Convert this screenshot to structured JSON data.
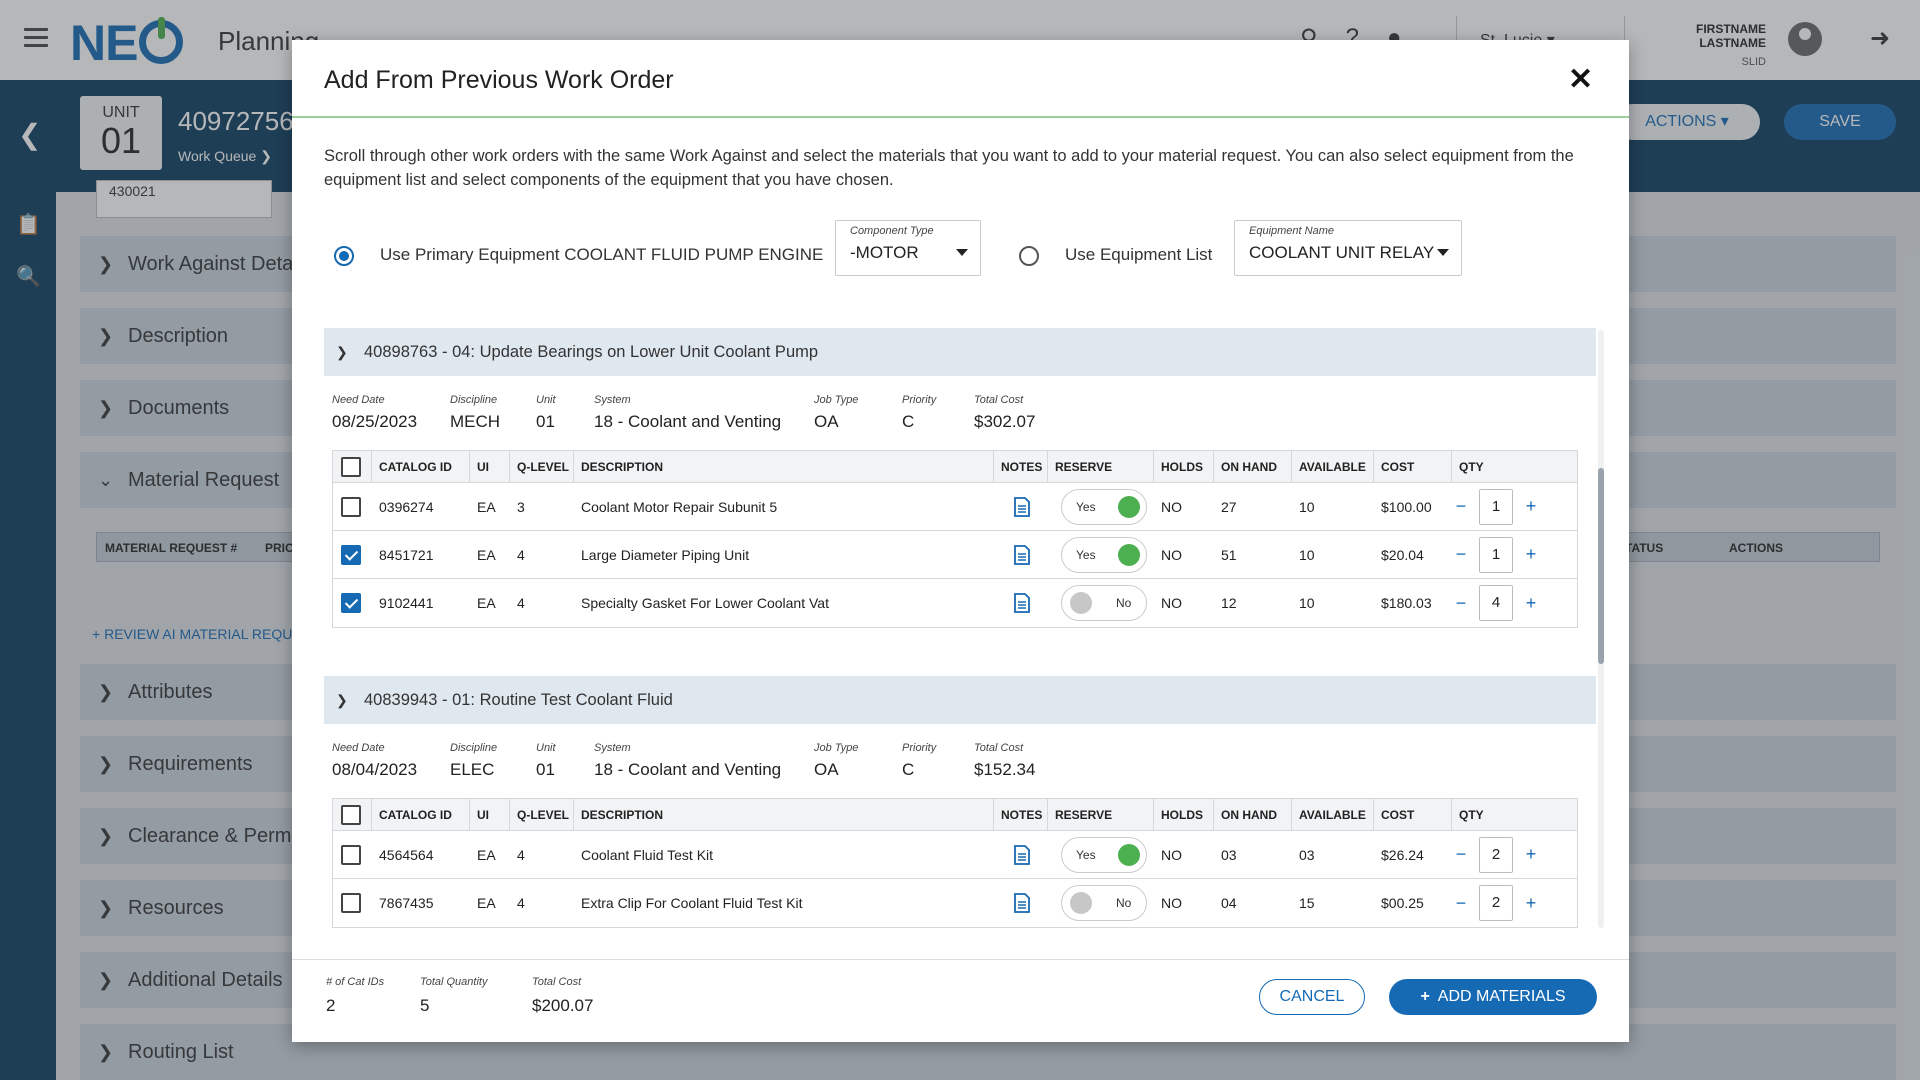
{
  "app": {
    "name": "Planning",
    "site": "St. Lucie",
    "user_name": "FIRSTNAME LASTNAME",
    "user_id": "SLID",
    "icons": [
      "menu-icon",
      "search-icon",
      "help-icon",
      "bell-icon",
      "chevron-down-icon",
      "avatar-icon",
      "logout-icon"
    ]
  },
  "header": {
    "unit_label": "UNIT",
    "unit_number": "01",
    "work_order_number": "40972756",
    "work_queue_link": "Work Queue",
    "actions_label": "ACTIONS",
    "save_label": "SAVE"
  },
  "background": {
    "input_stub": "430021",
    "sections": [
      "Work Against Details",
      "Description",
      "Documents",
      "Material Request",
      "Attributes",
      "Requirements",
      "Clearance & Permits",
      "Resources",
      "Additional Details",
      "Routing List"
    ],
    "mr_table_headers": [
      "MATERIAL REQUEST #",
      "PRIO",
      "STATUS",
      "ACTIONS"
    ],
    "review_ai_link": "REVIEW AI MATERIAL REQUEST"
  },
  "modal": {
    "title": "Add From Previous Work Order",
    "intro": "Scroll through other work orders with the same Work Against and select the materials that you want to add to your material request. You can also select equipment from the equipment list and select components of the equipment that you have chosen.",
    "option_primary_label": "Use Primary Equipment COOLANT FLUID PUMP ENGINE",
    "option_primary_selected": true,
    "component_type_caption": "Component Type",
    "component_type_value": "-MOTOR",
    "option_list_label": "Use Equipment List",
    "option_list_selected": false,
    "equipment_name_caption": "Equipment Name",
    "equipment_name_value": "COOLANT UNIT RELAY",
    "meta_captions": {
      "need_date": "Need Date",
      "discipline": "Discipline",
      "unit": "Unit",
      "system": "System",
      "job_type": "Job Type",
      "priority": "Priority",
      "total_cost": "Total Cost"
    },
    "table_headers": {
      "catalog_id": "CATALOG ID",
      "ui": "UI",
      "q_level": "Q-LEVEL",
      "description": "DESCRIPTION",
      "notes": "NOTES",
      "reserve": "RESERVE",
      "holds": "HOLDS",
      "on_hand": "ON HAND",
      "available": "AVAILABLE",
      "cost": "COST",
      "qty": "QTY"
    },
    "work_orders": [
      {
        "title": "40898763 - 04: Update Bearings on Lower Unit Coolant Pump",
        "need_date": "08/25/2023",
        "discipline": "MECH",
        "unit": "01",
        "system": "18 - Coolant and Venting",
        "job_type": "OA",
        "priority": "C",
        "total_cost": "$302.07",
        "rows": [
          {
            "checked": false,
            "catalog_id": "0396274",
            "ui": "EA",
            "q_level": "3",
            "description": "Coolant Motor Repair Subunit 5",
            "reserve": "Yes",
            "holds": "NO",
            "on_hand": "27",
            "available": "10",
            "cost": "$100.00",
            "qty": "1"
          },
          {
            "checked": true,
            "catalog_id": "8451721",
            "ui": "EA",
            "q_level": "4",
            "description": "Large Diameter Piping Unit",
            "reserve": "Yes",
            "holds": "NO",
            "on_hand": "51",
            "available": "10",
            "cost": "$20.04",
            "qty": "1"
          },
          {
            "checked": true,
            "catalog_id": "9102441",
            "ui": "EA",
            "q_level": "4",
            "description": "Specialty Gasket For Lower Coolant Vat",
            "reserve": "No",
            "holds": "NO",
            "on_hand": "12",
            "available": "10",
            "cost": "$180.03",
            "qty": "4"
          }
        ]
      },
      {
        "title": "40839943 - 01: Routine Test Coolant Fluid",
        "need_date": "08/04/2023",
        "discipline": "ELEC",
        "unit": "01",
        "system": "18 - Coolant and Venting",
        "job_type": "OA",
        "priority": "C",
        "total_cost": "$152.34",
        "rows": [
          {
            "checked": false,
            "catalog_id": "4564564",
            "ui": "EA",
            "q_level": "4",
            "description": "Coolant Fluid Test Kit",
            "reserve": "Yes",
            "holds": "NO",
            "on_hand": "03",
            "available": "03",
            "cost": "$26.24",
            "qty": "2"
          },
          {
            "checked": false,
            "catalog_id": "7867435",
            "ui": "EA",
            "q_level": "4",
            "description": "Extra Clip For Coolant Fluid Test Kit",
            "reserve": "No",
            "holds": "NO",
            "on_hand": "04",
            "available": "15",
            "cost": "$00.25",
            "qty": "2"
          }
        ]
      }
    ],
    "footer": {
      "cat_ids_caption": "# of Cat IDs",
      "cat_ids_value": "2",
      "total_qty_caption": "Total Quantity",
      "total_qty_value": "5",
      "total_cost_caption": "Total Cost",
      "total_cost_value": "$200.07",
      "cancel_label": "CANCEL",
      "add_label": "ADD MATERIALS"
    }
  },
  "colors": {
    "brand_blue": "#1669b3",
    "header_navy": "#0c3c60",
    "accent_green": "#4caf50",
    "wo_header_bg": "#dfe7ef"
  }
}
